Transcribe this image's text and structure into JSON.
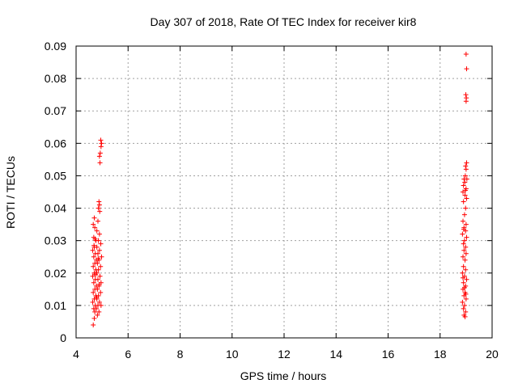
{
  "chart_data": {
    "type": "scatter",
    "title": "Day 307 of 2018, Rate Of TEC Index for receiver kir8",
    "xlabel": "GPS time / hours",
    "ylabel": "ROTI / TECUs",
    "xlim": [
      4,
      20
    ],
    "ylim": [
      0,
      0.09
    ],
    "xticks": [
      "4",
      "6",
      "8",
      "10",
      "12",
      "14",
      "16",
      "18",
      "20"
    ],
    "yticks": [
      "0",
      "0.01",
      "0.02",
      "0.03",
      "0.04",
      "0.05",
      "0.06",
      "0.07",
      "0.08",
      "0.09"
    ],
    "grid": true,
    "marker": "plus",
    "color": "#ff0000",
    "series": [
      {
        "values": [
          [
            4.95,
            0.061
          ],
          [
            4.98,
            0.06
          ],
          [
            4.96,
            0.059
          ],
          [
            4.93,
            0.057
          ],
          [
            4.9,
            0.056
          ],
          [
            4.92,
            0.054
          ],
          [
            4.88,
            0.042
          ],
          [
            4.9,
            0.041
          ],
          [
            4.86,
            0.04
          ],
          [
            4.91,
            0.039
          ],
          [
            4.7,
            0.037
          ],
          [
            4.84,
            0.036
          ],
          [
            4.66,
            0.035
          ],
          [
            4.72,
            0.034
          ],
          [
            4.8,
            0.033
          ],
          [
            4.9,
            0.032
          ],
          [
            4.68,
            0.031
          ],
          [
            4.76,
            0.03
          ],
          [
            4.86,
            0.03
          ],
          [
            4.95,
            0.029
          ],
          [
            4.7,
            0.028
          ],
          [
            4.8,
            0.028
          ],
          [
            4.64,
            0.027
          ],
          [
            4.9,
            0.027
          ],
          [
            4.74,
            0.026
          ],
          [
            4.84,
            0.026
          ],
          [
            4.98,
            0.025
          ],
          [
            4.68,
            0.025
          ],
          [
            4.78,
            0.024
          ],
          [
            4.88,
            0.024
          ],
          [
            4.72,
            0.023
          ],
          [
            4.82,
            0.023
          ],
          [
            4.94,
            0.022
          ],
          [
            4.66,
            0.022
          ],
          [
            4.76,
            0.021
          ],
          [
            4.86,
            0.021
          ],
          [
            4.7,
            0.02
          ],
          [
            4.8,
            0.02
          ],
          [
            4.92,
            0.019
          ],
          [
            4.64,
            0.019
          ],
          [
            4.74,
            0.018
          ],
          [
            4.84,
            0.018
          ],
          [
            4.96,
            0.017
          ],
          [
            4.68,
            0.017
          ],
          [
            4.78,
            0.016
          ],
          [
            4.88,
            0.016
          ],
          [
            4.72,
            0.015
          ],
          [
            4.82,
            0.015
          ],
          [
            4.94,
            0.014
          ],
          [
            4.66,
            0.014
          ],
          [
            4.76,
            0.013
          ],
          [
            4.86,
            0.013
          ],
          [
            4.7,
            0.012
          ],
          [
            4.8,
            0.012
          ],
          [
            4.9,
            0.011
          ],
          [
            4.64,
            0.011
          ],
          [
            4.74,
            0.01
          ],
          [
            4.84,
            0.01
          ],
          [
            4.96,
            0.01
          ],
          [
            4.68,
            0.009
          ],
          [
            4.78,
            0.009
          ],
          [
            4.88,
            0.008
          ],
          [
            4.72,
            0.008
          ],
          [
            4.82,
            0.007
          ],
          [
            4.7,
            0.006
          ],
          [
            4.66,
            0.004
          ],
          [
            4.75,
            0.0195
          ],
          [
            4.85,
            0.0245
          ],
          [
            4.69,
            0.0285
          ],
          [
            4.79,
            0.0125
          ],
          [
            4.89,
            0.0165
          ],
          [
            4.73,
            0.0305
          ],
          [
            19.0,
            0.0875
          ],
          [
            19.02,
            0.083
          ],
          [
            18.99,
            0.075
          ],
          [
            19.01,
            0.074
          ],
          [
            19.0,
            0.073
          ],
          [
            19.02,
            0.054
          ],
          [
            18.98,
            0.053
          ],
          [
            19.0,
            0.052
          ],
          [
            18.97,
            0.05
          ],
          [
            19.03,
            0.049
          ],
          [
            18.92,
            0.049
          ],
          [
            18.95,
            0.048
          ],
          [
            18.9,
            0.047
          ],
          [
            19.0,
            0.046
          ],
          [
            18.88,
            0.045
          ],
          [
            18.96,
            0.044
          ],
          [
            19.02,
            0.043
          ],
          [
            18.9,
            0.042
          ],
          [
            18.98,
            0.04
          ],
          [
            18.94,
            0.038
          ],
          [
            18.88,
            0.036
          ],
          [
            19.0,
            0.035
          ],
          [
            18.92,
            0.034
          ],
          [
            18.98,
            0.033
          ],
          [
            18.86,
            0.032
          ],
          [
            19.02,
            0.031
          ],
          [
            18.94,
            0.03
          ],
          [
            18.9,
            0.029
          ],
          [
            18.98,
            0.028
          ],
          [
            18.92,
            0.027
          ],
          [
            19.0,
            0.026
          ],
          [
            18.88,
            0.025
          ],
          [
            18.96,
            0.024
          ],
          [
            18.9,
            0.022
          ],
          [
            18.98,
            0.021
          ],
          [
            18.86,
            0.02
          ],
          [
            18.94,
            0.019
          ],
          [
            19.02,
            0.018
          ],
          [
            18.9,
            0.017
          ],
          [
            18.98,
            0.016
          ],
          [
            18.88,
            0.015
          ],
          [
            18.96,
            0.014
          ],
          [
            18.92,
            0.013
          ],
          [
            19.0,
            0.012
          ],
          [
            18.86,
            0.011
          ],
          [
            18.94,
            0.01
          ],
          [
            18.9,
            0.009
          ],
          [
            18.98,
            0.008
          ],
          [
            18.92,
            0.007
          ],
          [
            18.96,
            0.0065
          ],
          [
            18.94,
            0.0155
          ],
          [
            18.88,
            0.0185
          ],
          [
            18.99,
            0.0135
          ],
          [
            18.91,
            0.0335
          ],
          [
            18.97,
            0.0455
          ]
        ]
      }
    ]
  }
}
